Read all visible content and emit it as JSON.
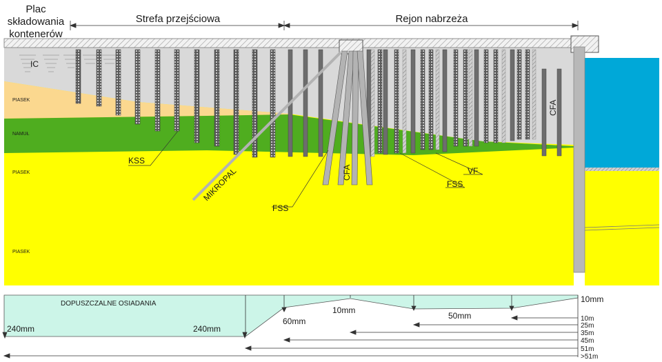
{
  "zones": {
    "yard": [
      "Plac",
      "składowania",
      "kontenerów"
    ],
    "transition": "Strefa przejściowa",
    "quay": "Rejon nabrzeża"
  },
  "soil_layers": {
    "ic": "IC",
    "sand1": "PIASEK",
    "mud": "NAMUŁ",
    "sand2": "PIASEK",
    "sand3": "PIASEK"
  },
  "elements": {
    "kss": "KSS",
    "micropile": "MIKROPAL",
    "fss_left": "FSS",
    "cfa_center": "CFA",
    "fss_right": "FSS",
    "vf": "VF",
    "cfa_right": "CFA"
  },
  "settlement": {
    "title": "DOPUSZCZALNE OSIADANIA",
    "values": [
      "240mm",
      "240mm",
      "60mm",
      "10mm",
      "50mm",
      "10mm"
    ],
    "distances": [
      "10m",
      "25m",
      "35m",
      "45m",
      "51m",
      ">51m"
    ]
  },
  "colors": {
    "ic": "#d9d9d9",
    "sand_upper": "#fbd88f",
    "mud": "#4fad1f",
    "sand": "#ffff00",
    "water": "#00a8d8",
    "band": "#ccf5e8",
    "column": "#6d6d6d"
  }
}
